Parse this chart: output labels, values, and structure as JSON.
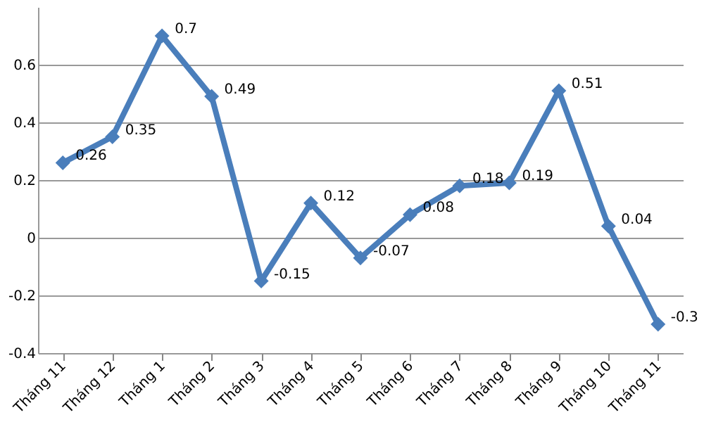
{
  "chart_data": {
    "type": "line",
    "categories": [
      "Tháng 11",
      "Tháng 12",
      "Tháng 1",
      "Tháng 2",
      "Tháng 3",
      "Tháng 4",
      "Tháng 5",
      "Tháng 6",
      "Tháng 7",
      "Tháng 8",
      "Tháng 9",
      "Tháng 10",
      "Tháng 11"
    ],
    "series": [
      {
        "color": "#4a7ebb",
        "values": [
          0.26,
          0.35,
          0.7,
          0.49,
          -0.15,
          0.12,
          -0.07,
          0.08,
          0.18,
          0.19,
          0.51,
          0.04,
          -0.3
        ]
      }
    ],
    "ylim": [
      -0.4,
      0.8
    ],
    "yticks": [
      -0.4,
      -0.2,
      0,
      0.2,
      0.4,
      0.6
    ],
    "grid": "y",
    "marker": "diamond",
    "line_style": "solid",
    "data_labels": true,
    "legend": false
  }
}
